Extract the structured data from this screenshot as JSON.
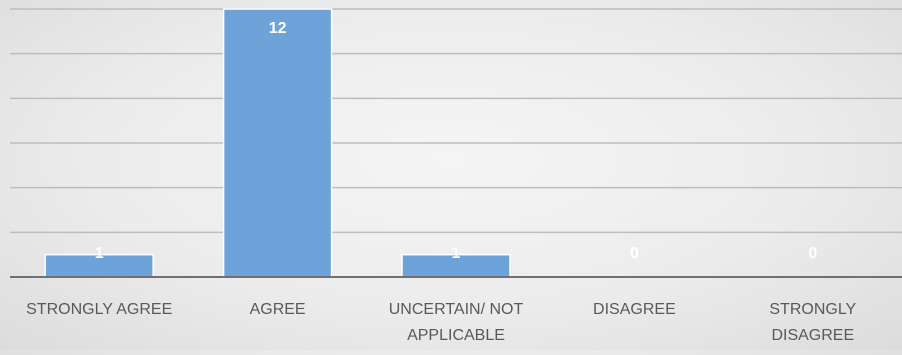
{
  "chart_data": {
    "type": "bar",
    "categories": [
      [
        "STRONGLY AGREE"
      ],
      [
        "AGREE"
      ],
      [
        "UNCERTAIN/ NOT",
        "APPLICABLE"
      ],
      [
        "DISAGREE"
      ],
      [
        "STRONGLY",
        "DISAGREE"
      ]
    ],
    "values": [
      1,
      12,
      1,
      0,
      0
    ],
    "ylim": [
      0,
      12
    ],
    "y_gridline_step": 2,
    "grid": true,
    "legend": "none",
    "data_labels": true,
    "colors": {
      "bar": "#6ea3d9",
      "gridline": "#bdbdbd",
      "baseline": "#707070",
      "tick_label": "#595959",
      "data_label": "#ffffff"
    }
  }
}
